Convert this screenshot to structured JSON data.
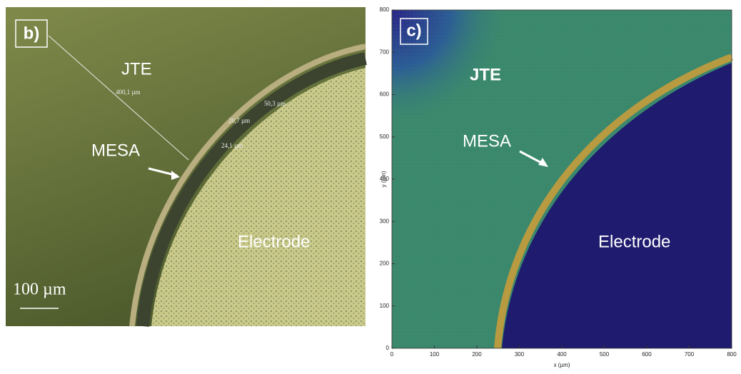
{
  "chart_data": [
    {
      "type": "image",
      "panel_label": "b)",
      "annotations": [
        "JTE",
        "MESA",
        "Electrode"
      ],
      "measurements": [
        "400,1 µm",
        "50,3 µm",
        "20,7 µm",
        "24,1 µm"
      ],
      "scale_bar": "100 µm"
    },
    {
      "type": "heatmap",
      "panel_label": "c)",
      "annotations": [
        "JTE",
        "MESA",
        "Electrode"
      ],
      "xlabel": "x (µm)",
      "ylabel": "y (µm)",
      "xlim": [
        0,
        800
      ],
      "ylim": [
        0,
        800
      ],
      "xticks": [
        0,
        100,
        200,
        300,
        400,
        500,
        600,
        700,
        800
      ],
      "yticks": [
        0,
        100,
        200,
        300,
        400,
        500,
        600,
        700,
        800
      ]
    }
  ]
}
